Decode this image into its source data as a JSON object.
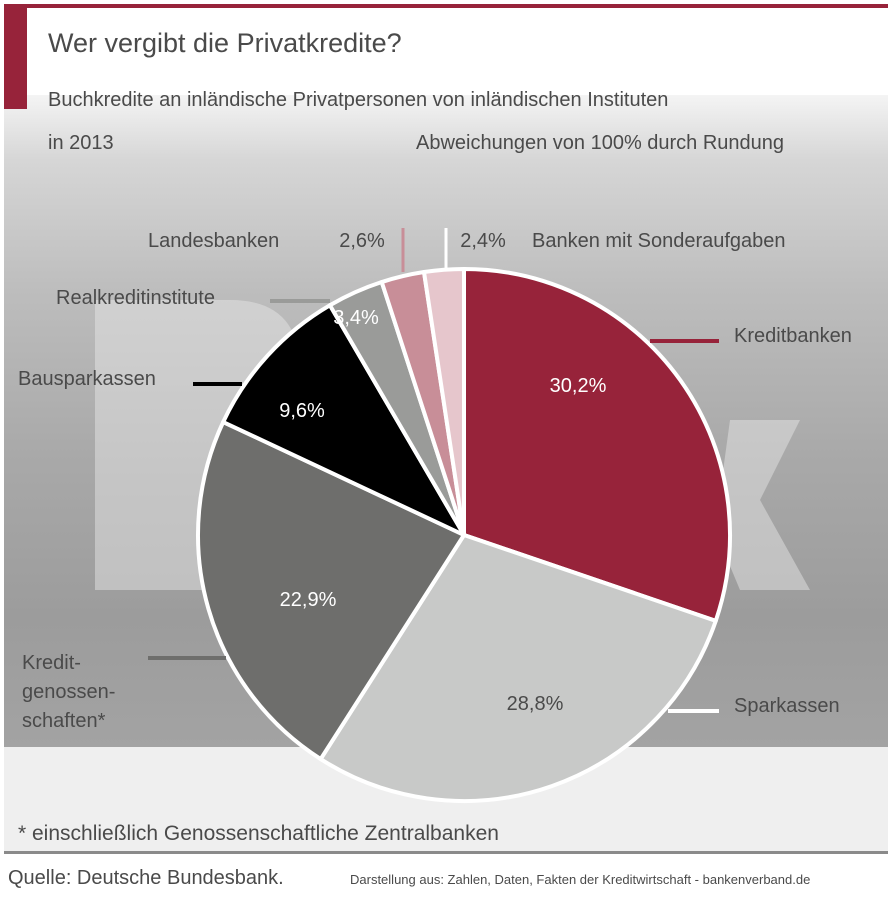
{
  "header": {
    "title": "Wer vergibt die Privatkredite?",
    "subtitle": "Buchkredite an inländische Privatpersonen von inländischen Instituten",
    "year": "in 2013",
    "note": "Abweichungen von 100% durch Rundung"
  },
  "chart_data": {
    "type": "pie",
    "title": "Wer vergibt die Privatkredite?",
    "start": "12 o'clock",
    "direction": "clockwise",
    "slices": [
      {
        "label": "Kreditbanken",
        "value": 30.2,
        "value_label": "30,2%",
        "color": "#97233a"
      },
      {
        "label": "Sparkassen",
        "value": 28.8,
        "value_label": "28,8%",
        "color": "#c8c9c8"
      },
      {
        "label": "Kredit-genossen-schaften*",
        "value": 22.9,
        "value_label": "22,9%",
        "color": "#6e6e6c"
      },
      {
        "label": "Bausparkassen",
        "value": 9.6,
        "value_label": "9,6%",
        "color": "#000000"
      },
      {
        "label": "Realkreditinstitute",
        "value": 3.4,
        "value_label": "3,4%",
        "color": "#9a9b99"
      },
      {
        "label": "Landesbanken",
        "value": 2.6,
        "value_label": "2,6%",
        "color": "#c88e98"
      },
      {
        "label": "Banken mit Sonderaufgaben",
        "value": 2.4,
        "value_label": "2,4%",
        "color": "#e6c6cc"
      }
    ]
  },
  "labels": {
    "kredit_lines": [
      "Kredit-",
      "genossen-",
      "schaften*"
    ]
  },
  "footer": {
    "footnote": "* einschließlich Genossenschaftliche Zentralbanken",
    "source": "Quelle: Deutsche Bundesbank.",
    "credit": "Darstellung aus: Zahlen, Daten, Fakten der Kreditwirtschaft - bankenverband.de"
  }
}
